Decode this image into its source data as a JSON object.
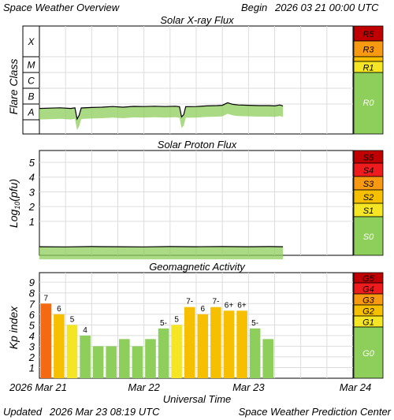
{
  "header": {
    "title": "Space Weather Overview",
    "begin_label": "Begin",
    "begin_time": "2026 03 21 00:00 UTC"
  },
  "footer": {
    "updated_label": "Updated",
    "updated_time": "2026 Mar 23 08:19 UTC",
    "center": "Space Weather Prediction Center",
    "xlabel": "Universal Time",
    "x_ticks": [
      "2026 Mar 21",
      "Mar 22",
      "Mar 23",
      "Mar 24"
    ]
  },
  "colors": {
    "green": "#8ece5a",
    "yellow": "#f5e625",
    "orange_light": "#f6c000",
    "orange": "#f79a12",
    "red_orange": "#f46a12",
    "red": "#ee1c1c",
    "dark_red": "#c00000",
    "grid": "#dddddd",
    "line": "#000000"
  },
  "chart_data": [
    {
      "id": "xray",
      "type": "line",
      "title": "Solar X-ray Flux",
      "ylabel": "Flare Class",
      "y_classes": [
        "A",
        "B",
        "C",
        "M",
        "X"
      ],
      "scale_labels": [
        "R5",
        "R3",
        "R1",
        "R0"
      ],
      "x_range_days": [
        0,
        3
      ],
      "points": [
        [
          0.0,
          1.22
        ],
        [
          0.1,
          1.24
        ],
        [
          0.2,
          1.26
        ],
        [
          0.3,
          1.22
        ],
        [
          0.34,
          1.26
        ],
        [
          0.36,
          0.55
        ],
        [
          0.38,
          0.78
        ],
        [
          0.4,
          1.25
        ],
        [
          0.5,
          1.28
        ],
        [
          0.6,
          1.3
        ],
        [
          0.7,
          1.34
        ],
        [
          0.8,
          1.3
        ],
        [
          0.9,
          1.35
        ],
        [
          1.0,
          1.34
        ],
        [
          1.1,
          1.36
        ],
        [
          1.2,
          1.34
        ],
        [
          1.3,
          1.36
        ],
        [
          1.34,
          1.33
        ],
        [
          1.36,
          0.68
        ],
        [
          1.38,
          0.82
        ],
        [
          1.4,
          1.33
        ],
        [
          1.5,
          1.34
        ],
        [
          1.6,
          1.38
        ],
        [
          1.7,
          1.4
        ],
        [
          1.75,
          1.42
        ],
        [
          1.8,
          1.58
        ],
        [
          1.85,
          1.48
        ],
        [
          1.9,
          1.44
        ],
        [
          2.0,
          1.42
        ],
        [
          2.1,
          1.4
        ],
        [
          2.2,
          1.4
        ],
        [
          2.25,
          1.38
        ],
        [
          2.3,
          1.44
        ],
        [
          2.33,
          1.38
        ]
      ]
    },
    {
      "id": "proton",
      "type": "line",
      "title": "Solar Proton Flux",
      "ylabel": "Log10(pfu)",
      "y_ticks": [
        1,
        2,
        3,
        4,
        5
      ],
      "ylim": [
        -1.3,
        5.8
      ],
      "scale_labels": [
        "S5",
        "S4",
        "S3",
        "S2",
        "S1",
        "S0"
      ],
      "x_range_days": [
        0,
        3
      ],
      "points": [
        [
          0.0,
          -0.72
        ],
        [
          0.25,
          -0.73
        ],
        [
          0.5,
          -0.71
        ],
        [
          0.75,
          -0.72
        ],
        [
          1.0,
          -0.73
        ],
        [
          1.25,
          -0.71
        ],
        [
          1.5,
          -0.72
        ],
        [
          1.75,
          -0.71
        ],
        [
          2.0,
          -0.72
        ],
        [
          2.2,
          -0.71
        ],
        [
          2.33,
          -0.72
        ]
      ]
    },
    {
      "id": "kp",
      "type": "bar",
      "title": "Geomagnetic Activity",
      "ylabel": "Kp index",
      "y_ticks": [
        1,
        2,
        3,
        4,
        5,
        6,
        7,
        8,
        9
      ],
      "ylim": [
        0,
        9.9
      ],
      "scale_labels": [
        "G5",
        "G4",
        "G3",
        "G2",
        "G1",
        "G0"
      ],
      "x_range_days": [
        0,
        3
      ],
      "values": [
        7.0,
        6.0,
        5.0,
        4.0,
        3.0,
        3.0,
        3.67,
        3.0,
        3.67,
        4.67,
        5.0,
        6.67,
        6.0,
        6.67,
        6.33,
        6.33,
        4.67,
        3.67
      ],
      "labels": [
        "7",
        "6",
        "5",
        "4",
        "",
        "",
        "",
        "",
        "",
        "5-",
        "5",
        "7-",
        "6",
        "7-",
        "6+",
        "6+",
        "5-",
        ""
      ]
    }
  ]
}
